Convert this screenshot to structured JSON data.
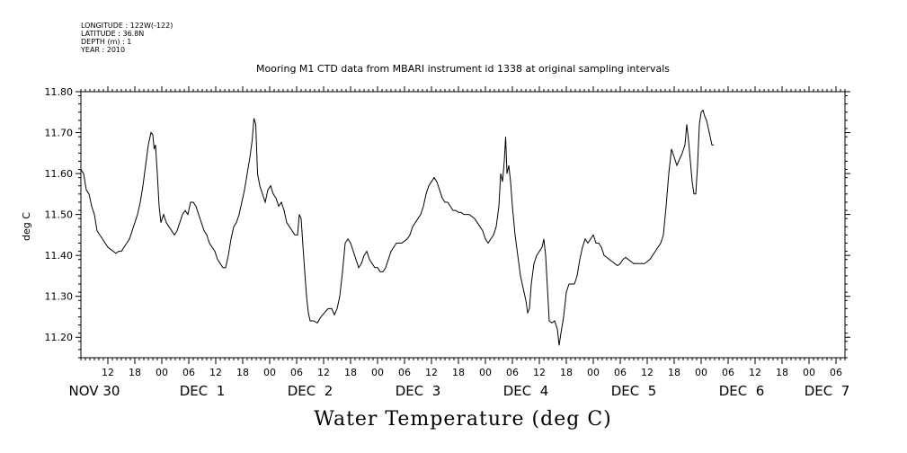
{
  "header": {
    "longitude": "LONGITUDE : 122W(-122)",
    "latitude": "LATITUDE : 36.8N",
    "depth": "DEPTH (m) : 1",
    "year": "YEAR : 2010"
  },
  "chart_data": {
    "type": "line",
    "title": "Mooring M1 CTD data from MBARI instrument id 1338 at original sampling intervals",
    "bottom_title": "Water Temperature (deg C)",
    "ylabel": "deg C",
    "xlabel": "",
    "ylim": [
      11.15,
      11.8
    ],
    "yticks": [
      "11.20",
      "11.30",
      "11.40",
      "11.50",
      "11.60",
      "11.70",
      "11.80"
    ],
    "x_units": "hours since Nov 30 06:00, 2010",
    "xlim": [
      0,
      170
    ],
    "hour_ticks": [
      {
        "h": 6,
        "label": "12"
      },
      {
        "h": 12,
        "label": "18"
      },
      {
        "h": 18,
        "label": "00"
      },
      {
        "h": 24,
        "label": "06"
      },
      {
        "h": 30,
        "label": "12"
      },
      {
        "h": 36,
        "label": "18"
      },
      {
        "h": 42,
        "label": "00"
      },
      {
        "h": 48,
        "label": "06"
      },
      {
        "h": 54,
        "label": "12"
      },
      {
        "h": 60,
        "label": "18"
      },
      {
        "h": 66,
        "label": "00"
      },
      {
        "h": 72,
        "label": "06"
      },
      {
        "h": 78,
        "label": "12"
      },
      {
        "h": 84,
        "label": "18"
      },
      {
        "h": 90,
        "label": "00"
      },
      {
        "h": 96,
        "label": "06"
      },
      {
        "h": 102,
        "label": "12"
      },
      {
        "h": 108,
        "label": "18"
      },
      {
        "h": 114,
        "label": "00"
      },
      {
        "h": 120,
        "label": "06"
      },
      {
        "h": 126,
        "label": "12"
      },
      {
        "h": 132,
        "label": "18"
      },
      {
        "h": 138,
        "label": "00"
      },
      {
        "h": 144,
        "label": "06"
      },
      {
        "h": 150,
        "label": "12"
      },
      {
        "h": 156,
        "label": "18"
      },
      {
        "h": 162,
        "label": "00"
      },
      {
        "h": 168,
        "label": "06"
      }
    ],
    "day_labels": [
      {
        "h": 3,
        "label": "NOV 30"
      },
      {
        "h": 27,
        "label": "DEC  1"
      },
      {
        "h": 51,
        "label": "DEC  2"
      },
      {
        "h": 75,
        "label": "DEC  3"
      },
      {
        "h": 99,
        "label": "DEC  4"
      },
      {
        "h": 123,
        "label": "DEC  5"
      },
      {
        "h": 147,
        "label": "DEC  6"
      },
      {
        "h": 166,
        "label": "DEC  7"
      }
    ],
    "series": [
      {
        "values": [
          [
            0.0,
            11.61
          ],
          [
            0.6,
            11.6
          ],
          [
            1.2,
            11.56
          ],
          [
            1.8,
            11.55
          ],
          [
            2.4,
            11.52
          ],
          [
            3.0,
            11.5
          ],
          [
            3.6,
            11.46
          ],
          [
            4.2,
            11.45
          ],
          [
            4.8,
            11.44
          ],
          [
            5.4,
            11.43
          ],
          [
            6.0,
            11.42
          ],
          [
            6.6,
            11.415
          ],
          [
            7.2,
            11.41
          ],
          [
            7.8,
            11.405
          ],
          [
            8.4,
            11.41
          ],
          [
            9.0,
            11.41
          ],
          [
            9.6,
            11.42
          ],
          [
            10.2,
            11.43
          ],
          [
            10.8,
            11.44
          ],
          [
            11.4,
            11.46
          ],
          [
            12.0,
            11.48
          ],
          [
            12.6,
            11.5
          ],
          [
            13.2,
            11.53
          ],
          [
            13.8,
            11.57
          ],
          [
            14.4,
            11.62
          ],
          [
            15.0,
            11.67
          ],
          [
            15.6,
            11.7
          ],
          [
            16.0,
            11.695
          ],
          [
            16.3,
            11.66
          ],
          [
            16.6,
            11.67
          ],
          [
            17.0,
            11.6
          ],
          [
            17.4,
            11.52
          ],
          [
            17.8,
            11.48
          ],
          [
            18.4,
            11.5
          ],
          [
            19.0,
            11.48
          ],
          [
            19.6,
            11.47
          ],
          [
            20.2,
            11.46
          ],
          [
            20.8,
            11.45
          ],
          [
            21.4,
            11.46
          ],
          [
            22.0,
            11.48
          ],
          [
            22.6,
            11.5
          ],
          [
            23.2,
            11.51
          ],
          [
            23.8,
            11.5
          ],
          [
            24.4,
            11.53
          ],
          [
            25.0,
            11.53
          ],
          [
            25.6,
            11.52
          ],
          [
            26.2,
            11.5
          ],
          [
            26.8,
            11.48
          ],
          [
            27.4,
            11.46
          ],
          [
            28.0,
            11.45
          ],
          [
            28.6,
            11.43
          ],
          [
            29.2,
            11.42
          ],
          [
            29.8,
            11.41
          ],
          [
            30.4,
            11.39
          ],
          [
            31.0,
            11.38
          ],
          [
            31.6,
            11.37
          ],
          [
            32.2,
            11.37
          ],
          [
            32.8,
            11.4
          ],
          [
            33.4,
            11.44
          ],
          [
            34.0,
            11.47
          ],
          [
            34.6,
            11.48
          ],
          [
            35.2,
            11.5
          ],
          [
            35.8,
            11.53
          ],
          [
            36.4,
            11.56
          ],
          [
            37.0,
            11.6
          ],
          [
            37.6,
            11.64
          ],
          [
            38.1,
            11.68
          ],
          [
            38.5,
            11.735
          ],
          [
            38.9,
            11.72
          ],
          [
            39.3,
            11.6
          ],
          [
            39.8,
            11.57
          ],
          [
            40.4,
            11.55
          ],
          [
            41.0,
            11.53
          ],
          [
            41.6,
            11.56
          ],
          [
            42.2,
            11.57
          ],
          [
            42.8,
            11.55
          ],
          [
            43.4,
            11.54
          ],
          [
            44.0,
            11.52
          ],
          [
            44.6,
            11.53
          ],
          [
            45.2,
            11.51
          ],
          [
            45.8,
            11.48
          ],
          [
            46.4,
            11.47
          ],
          [
            47.0,
            11.46
          ],
          [
            47.6,
            11.45
          ],
          [
            48.2,
            11.45
          ],
          [
            48.6,
            11.5
          ],
          [
            49.0,
            11.49
          ],
          [
            49.3,
            11.44
          ],
          [
            49.8,
            11.36
          ],
          [
            50.2,
            11.3
          ],
          [
            50.6,
            11.26
          ],
          [
            51.0,
            11.24
          ],
          [
            51.8,
            11.24
          ],
          [
            52.6,
            11.235
          ],
          [
            53.4,
            11.25
          ],
          [
            54.2,
            11.26
          ],
          [
            55.0,
            11.27
          ],
          [
            55.8,
            11.27
          ],
          [
            56.4,
            11.255
          ],
          [
            57.0,
            11.27
          ],
          [
            57.6,
            11.3
          ],
          [
            58.2,
            11.36
          ],
          [
            58.8,
            11.43
          ],
          [
            59.4,
            11.44
          ],
          [
            60.0,
            11.43
          ],
          [
            60.6,
            11.41
          ],
          [
            61.2,
            11.39
          ],
          [
            61.8,
            11.37
          ],
          [
            62.4,
            11.38
          ],
          [
            63.0,
            11.4
          ],
          [
            63.6,
            11.41
          ],
          [
            64.2,
            11.39
          ],
          [
            64.8,
            11.38
          ],
          [
            65.4,
            11.37
          ],
          [
            66.0,
            11.37
          ],
          [
            66.6,
            11.36
          ],
          [
            67.2,
            11.36
          ],
          [
            67.8,
            11.37
          ],
          [
            68.4,
            11.39
          ],
          [
            69.0,
            11.41
          ],
          [
            69.6,
            11.42
          ],
          [
            70.2,
            11.43
          ],
          [
            70.8,
            11.43
          ],
          [
            71.4,
            11.43
          ],
          [
            72.0,
            11.435
          ],
          [
            72.6,
            11.44
          ],
          [
            73.2,
            11.45
          ],
          [
            73.8,
            11.47
          ],
          [
            74.4,
            11.48
          ],
          [
            75.0,
            11.49
          ],
          [
            75.6,
            11.5
          ],
          [
            76.2,
            11.52
          ],
          [
            76.8,
            11.55
          ],
          [
            77.4,
            11.57
          ],
          [
            78.0,
            11.58
          ],
          [
            78.6,
            11.59
          ],
          [
            79.2,
            11.58
          ],
          [
            79.8,
            11.56
          ],
          [
            80.4,
            11.54
          ],
          [
            81.0,
            11.53
          ],
          [
            81.6,
            11.53
          ],
          [
            82.2,
            11.52
          ],
          [
            82.8,
            11.51
          ],
          [
            83.4,
            11.51
          ],
          [
            84.0,
            11.505
          ],
          [
            84.6,
            11.505
          ],
          [
            85.2,
            11.5
          ],
          [
            85.8,
            11.5
          ],
          [
            86.4,
            11.5
          ],
          [
            87.0,
            11.495
          ],
          [
            87.6,
            11.49
          ],
          [
            88.2,
            11.48
          ],
          [
            88.8,
            11.47
          ],
          [
            89.4,
            11.46
          ],
          [
            90.0,
            11.44
          ],
          [
            90.6,
            11.43
          ],
          [
            91.2,
            11.44
          ],
          [
            91.8,
            11.45
          ],
          [
            92.4,
            11.47
          ],
          [
            93.0,
            11.52
          ],
          [
            93.4,
            11.6
          ],
          [
            93.8,
            11.58
          ],
          [
            94.2,
            11.63
          ],
          [
            94.5,
            11.69
          ],
          [
            94.8,
            11.6
          ],
          [
            95.2,
            11.62
          ],
          [
            95.6,
            11.58
          ],
          [
            96.0,
            11.52
          ],
          [
            96.6,
            11.45
          ],
          [
            97.2,
            11.4
          ],
          [
            97.8,
            11.35
          ],
          [
            98.4,
            11.32
          ],
          [
            99.0,
            11.29
          ],
          [
            99.4,
            11.26
          ],
          [
            99.8,
            11.27
          ],
          [
            100.2,
            11.33
          ],
          [
            100.8,
            11.38
          ],
          [
            101.4,
            11.4
          ],
          [
            102.0,
            11.41
          ],
          [
            102.6,
            11.42
          ],
          [
            103.0,
            11.44
          ],
          [
            103.4,
            11.4
          ],
          [
            103.8,
            11.32
          ],
          [
            104.2,
            11.24
          ],
          [
            104.8,
            11.235
          ],
          [
            105.4,
            11.24
          ],
          [
            106.0,
            11.22
          ],
          [
            106.4,
            11.18
          ],
          [
            106.8,
            11.21
          ],
          [
            107.4,
            11.25
          ],
          [
            108.0,
            11.31
          ],
          [
            108.6,
            11.33
          ],
          [
            109.2,
            11.33
          ],
          [
            109.8,
            11.33
          ],
          [
            110.4,
            11.35
          ],
          [
            111.0,
            11.39
          ],
          [
            111.6,
            11.42
          ],
          [
            112.2,
            11.44
          ],
          [
            112.8,
            11.43
          ],
          [
            113.4,
            11.44
          ],
          [
            114.0,
            11.45
          ],
          [
            114.6,
            11.43
          ],
          [
            115.2,
            11.43
          ],
          [
            115.8,
            11.42
          ],
          [
            116.4,
            11.4
          ],
          [
            117.0,
            11.395
          ],
          [
            117.6,
            11.39
          ],
          [
            118.2,
            11.385
          ],
          [
            118.8,
            11.38
          ],
          [
            119.4,
            11.375
          ],
          [
            120.0,
            11.38
          ],
          [
            120.6,
            11.39
          ],
          [
            121.2,
            11.395
          ],
          [
            121.8,
            11.39
          ],
          [
            122.4,
            11.385
          ],
          [
            123.0,
            11.38
          ],
          [
            123.6,
            11.38
          ],
          [
            124.2,
            11.38
          ],
          [
            124.8,
            11.38
          ],
          [
            125.4,
            11.38
          ],
          [
            126.0,
            11.385
          ],
          [
            126.6,
            11.39
          ],
          [
            127.2,
            11.4
          ],
          [
            127.8,
            11.41
          ],
          [
            128.4,
            11.42
          ],
          [
            129.0,
            11.43
          ],
          [
            129.6,
            11.45
          ],
          [
            130.2,
            11.52
          ],
          [
            130.8,
            11.6
          ],
          [
            131.4,
            11.66
          ],
          [
            132.0,
            11.64
          ],
          [
            132.6,
            11.62
          ],
          [
            133.2,
            11.635
          ],
          [
            133.8,
            11.65
          ],
          [
            134.4,
            11.67
          ],
          [
            134.8,
            11.72
          ],
          [
            135.2,
            11.68
          ],
          [
            135.6,
            11.63
          ],
          [
            136.0,
            11.58
          ],
          [
            136.4,
            11.55
          ],
          [
            136.8,
            11.55
          ],
          [
            137.2,
            11.62
          ],
          [
            137.6,
            11.72
          ],
          [
            138.0,
            11.75
          ],
          [
            138.4,
            11.755
          ],
          [
            138.8,
            11.74
          ],
          [
            139.2,
            11.73
          ],
          [
            139.6,
            11.71
          ],
          [
            140.0,
            11.69
          ],
          [
            140.4,
            11.67
          ],
          [
            140.8,
            11.67
          ]
        ]
      }
    ]
  }
}
